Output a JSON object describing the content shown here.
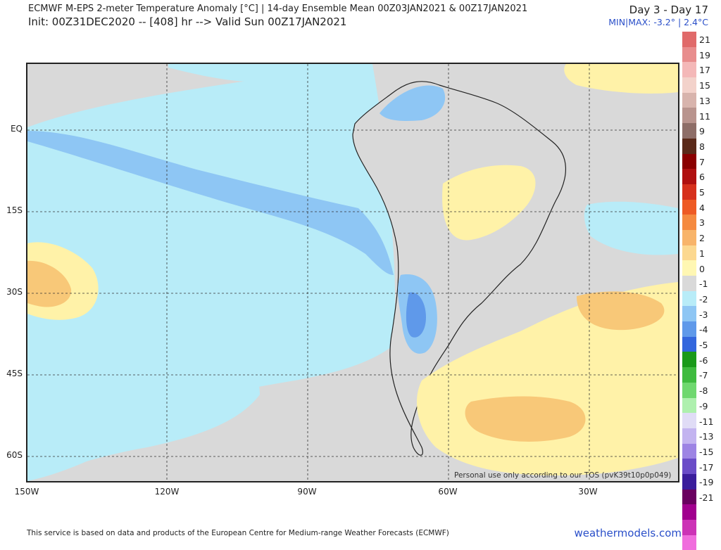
{
  "header": {
    "title_line1": "ECMWF M-EPS 2-meter Temperature Anomaly [°C] | 14-day Ensemble Mean 00Z03JAN2021 & 00Z17JAN2021",
    "title_line2": "Init: 00Z31DEC2020 -- [408] hr --> Valid Sun 00Z17JAN2021",
    "range_label": "Day 3 - Day 17",
    "minmax": "MIN|MAX: -3.2° | 2.4°C"
  },
  "map": {
    "lat_labels": [
      "EQ",
      "15S",
      "30S",
      "45S",
      "60S"
    ],
    "lon_labels": [
      "150W",
      "120W",
      "90W",
      "60W",
      "30W"
    ],
    "watermark": "Personal use only according to our TOS (pvK39t10p0p049)"
  },
  "legend": {
    "labels": [
      "21",
      "19",
      "17",
      "15",
      "13",
      "11",
      "9",
      "8",
      "7",
      "6",
      "5",
      "4",
      "3",
      "2",
      "1",
      "0",
      "-1",
      "-2",
      "-3",
      "-4",
      "-5",
      "-6",
      "-7",
      "-8",
      "-9",
      "-11",
      "-13",
      "-15",
      "-17",
      "-19",
      "-21"
    ],
    "colors": [
      "#e06a6a",
      "#e88d8d",
      "#f4b8b8",
      "#f3d2cb",
      "#d8b4ad",
      "#b9948e",
      "#8e6e68",
      "#5b2a1a",
      "#8b0000",
      "#b01010",
      "#d6301c",
      "#ee5a24",
      "#f58a40",
      "#f8b46a",
      "#fcd890",
      "#fff7b3",
      "#d9d9d9",
      "#b8ecf8",
      "#8ec6f4",
      "#5f99ea",
      "#3366dd",
      "#1a9a1a",
      "#3fbb3f",
      "#6fd86f",
      "#aef0ae",
      "#e0dcf6",
      "#c3b4f0",
      "#9d84e4",
      "#6a4cc8",
      "#3a1d9c",
      "#6a0060",
      "#a1008e",
      "#cc33b6",
      "#f06ddd"
    ]
  },
  "footer": {
    "left": "This service is based on data and products of the European Centre for Medium-range Weather Forecasts (ECMWF)",
    "right": "weathermodels.com"
  }
}
